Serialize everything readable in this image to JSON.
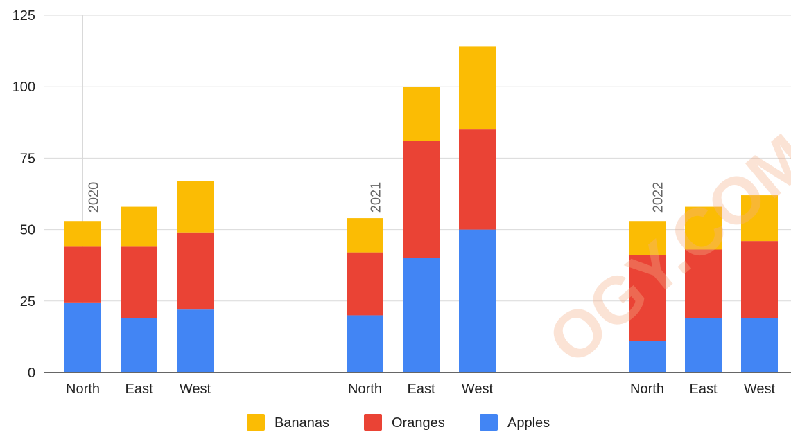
{
  "chart_data": {
    "type": "bar",
    "stacked": true,
    "groups": [
      {
        "label": "2020",
        "categories": [
          "North",
          "East",
          "West"
        ]
      },
      {
        "label": "2021",
        "categories": [
          "North",
          "East",
          "West"
        ]
      },
      {
        "label": "2022",
        "categories": [
          "North",
          "East",
          "West"
        ]
      }
    ],
    "series": [
      {
        "name": "Apples",
        "color": "#4285f4",
        "values": [
          24.5,
          19,
          22,
          20,
          40,
          50,
          11,
          19,
          19
        ]
      },
      {
        "name": "Oranges",
        "color": "#ea4335",
        "values": [
          19.5,
          25,
          27,
          22,
          41,
          35,
          30,
          24,
          27
        ]
      },
      {
        "name": "Bananas",
        "color": "#fbbc04",
        "values": [
          9,
          14,
          18,
          12,
          19,
          29,
          12,
          15,
          16
        ]
      }
    ],
    "legend_order": [
      "Bananas",
      "Oranges",
      "Apples"
    ],
    "ylim": [
      0,
      125
    ],
    "yticks": [
      0,
      25,
      50,
      75,
      100,
      125
    ],
    "grid": true,
    "legend_position": "bottom",
    "title": "",
    "xlabel": "",
    "ylabel": ""
  },
  "watermark": "OGY.COM"
}
